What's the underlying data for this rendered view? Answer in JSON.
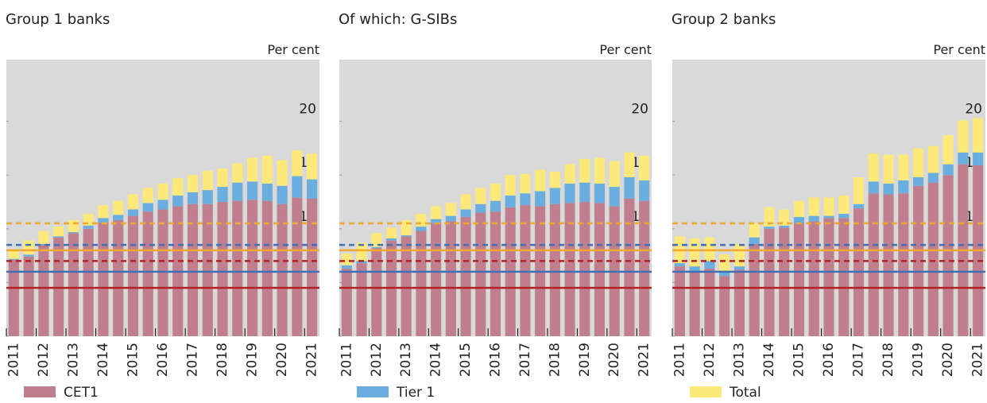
{
  "chart_data": [
    {
      "type": "bar",
      "stacked": true,
      "title": "Group 1 banks",
      "y_label": "Per cent",
      "categories": [
        "2011",
        null,
        "2012",
        null,
        "2013",
        null,
        "2014",
        null,
        "2015",
        null,
        "2016",
        null,
        "2017",
        null,
        "2018",
        null,
        "2019",
        null,
        "2020",
        null,
        "2021"
      ],
      "series": [
        {
          "name": "CET1",
          "color": "#c07f8e",
          "values": [
            7.1,
            7.4,
            8.5,
            9.2,
            9.6,
            10.0,
            10.6,
            10.8,
            11.2,
            11.6,
            11.8,
            12.1,
            12.3,
            12.3,
            12.5,
            12.6,
            12.7,
            12.6,
            12.3,
            12.9,
            12.8
          ]
        },
        {
          "name": "Tier 1",
          "color": "#6aaee0",
          "values": [
            0.1,
            0.2,
            0.1,
            0.1,
            0.1,
            0.3,
            0.4,
            0.5,
            0.6,
            0.8,
            0.9,
            1.0,
            1.1,
            1.3,
            1.4,
            1.7,
            1.7,
            1.6,
            1.7,
            2.0,
            1.8
          ]
        },
        {
          "name": "Total",
          "color": "#fde97a",
          "values": [
            0.9,
            1.3,
            1.2,
            0.9,
            1.1,
            1.1,
            1.2,
            1.3,
            1.4,
            1.4,
            1.5,
            1.6,
            1.6,
            1.8,
            1.7,
            1.8,
            2.2,
            2.6,
            2.4,
            2.4,
            2.4
          ]
        }
      ],
      "reference_lines": [
        {
          "value": 4.5,
          "color": "#b22222",
          "dashed": false
        },
        {
          "value": 6,
          "color": "#3f6fb5",
          "dashed": false
        },
        {
          "value": 7,
          "color": "#b22222",
          "dashed": true
        },
        {
          "value": 8,
          "color": "#f0a830",
          "dashed": false
        },
        {
          "value": 8.5,
          "color": "#3f6fb5",
          "dashed": true
        },
        {
          "value": 10.5,
          "color": "#f0a830",
          "dashed": true
        }
      ],
      "ylim": [
        0,
        25
      ],
      "yticks": [
        0,
        5,
        10,
        15,
        20
      ]
    },
    {
      "type": "bar",
      "stacked": true,
      "title": "Of which: G-SIBs",
      "y_label": "Per cent",
      "categories": [
        "2011",
        null,
        "2012",
        null,
        "2013",
        null,
        "2014",
        null,
        "2015",
        null,
        "2016",
        null,
        "2017",
        null,
        "2018",
        null,
        "2019",
        null,
        "2020",
        null,
        "2021"
      ],
      "series": [
        {
          "name": "CET1",
          "color": "#c07f8e",
          "values": [
            6.3,
            6.8,
            8.2,
            8.9,
            9.3,
            9.8,
            10.5,
            10.7,
            11.1,
            11.5,
            11.6,
            12.0,
            12.2,
            12.1,
            12.3,
            12.4,
            12.5,
            12.4,
            12.1,
            12.8,
            12.6
          ]
        },
        {
          "name": "Tier 1",
          "color": "#6aaee0",
          "values": [
            0.3,
            0.2,
            0.1,
            0.2,
            0.1,
            0.4,
            0.4,
            0.5,
            0.7,
            0.8,
            1.0,
            1.1,
            1.1,
            1.4,
            1.5,
            1.8,
            1.8,
            1.8,
            1.8,
            2.0,
            1.9
          ]
        },
        {
          "name": "Total",
          "color": "#fde97a",
          "values": [
            1.1,
            1.7,
            1.3,
            1.0,
            1.4,
            1.2,
            1.2,
            1.2,
            1.4,
            1.5,
            1.6,
            1.9,
            1.8,
            2.0,
            1.5,
            1.8,
            2.2,
            2.4,
            2.4,
            2.3,
            2.3
          ]
        }
      ],
      "reference_lines": [
        {
          "value": 4.5,
          "color": "#b22222",
          "dashed": false
        },
        {
          "value": 6,
          "color": "#3f6fb5",
          "dashed": false
        },
        {
          "value": 7,
          "color": "#b22222",
          "dashed": true
        },
        {
          "value": 8,
          "color": "#f0a830",
          "dashed": false
        },
        {
          "value": 8.5,
          "color": "#3f6fb5",
          "dashed": true
        },
        {
          "value": 10.5,
          "color": "#f0a830",
          "dashed": true
        }
      ],
      "ylim": [
        0,
        25
      ],
      "yticks": [
        0,
        5,
        10,
        15,
        20
      ]
    },
    {
      "type": "bar",
      "stacked": true,
      "title": "Group 2 banks",
      "y_label": "Per cent",
      "categories": [
        "2011",
        null,
        "2012",
        null,
        "2013",
        null,
        "2014",
        null,
        "2015",
        null,
        "2016",
        null,
        "2017",
        null,
        "2018",
        null,
        "2019",
        null,
        "2020",
        null,
        "2021"
      ],
      "series": [
        {
          "name": "CET1",
          "color": "#c07f8e",
          "values": [
            6.5,
            6.0,
            6.3,
            5.6,
            6.2,
            8.6,
            10.0,
            10.1,
            10.5,
            10.7,
            11.0,
            11.0,
            11.9,
            13.3,
            13.2,
            13.3,
            14.0,
            14.3,
            15.0,
            16.0,
            15.9
          ]
        },
        {
          "name": "Tier 1",
          "color": "#6aaee0",
          "values": [
            0.3,
            0.5,
            0.7,
            0.5,
            0.3,
            0.6,
            0.2,
            0.2,
            0.6,
            0.5,
            0.2,
            0.4,
            0.4,
            1.1,
            1.0,
            1.2,
            0.8,
            0.9,
            1.0,
            1.1,
            1.2
          ]
        },
        {
          "name": "Total",
          "color": "#fde97a",
          "values": [
            2.5,
            2.6,
            2.2,
            1.5,
            2.1,
            1.3,
            1.8,
            1.5,
            1.5,
            1.7,
            1.7,
            1.7,
            2.5,
            2.6,
            2.7,
            2.4,
            2.7,
            2.5,
            2.7,
            3.0,
            3.2
          ]
        }
      ],
      "reference_lines": [
        {
          "value": 4.5,
          "color": "#b22222",
          "dashed": false
        },
        {
          "value": 6,
          "color": "#3f6fb5",
          "dashed": false
        },
        {
          "value": 7,
          "color": "#b22222",
          "dashed": true
        },
        {
          "value": 8,
          "color": "#f0a830",
          "dashed": false
        },
        {
          "value": 8.5,
          "color": "#3f6fb5",
          "dashed": true
        },
        {
          "value": 10.5,
          "color": "#f0a830",
          "dashed": true
        }
      ],
      "ylim": [
        0,
        25
      ],
      "yticks": [
        0,
        5,
        10,
        15,
        20
      ]
    }
  ]
}
